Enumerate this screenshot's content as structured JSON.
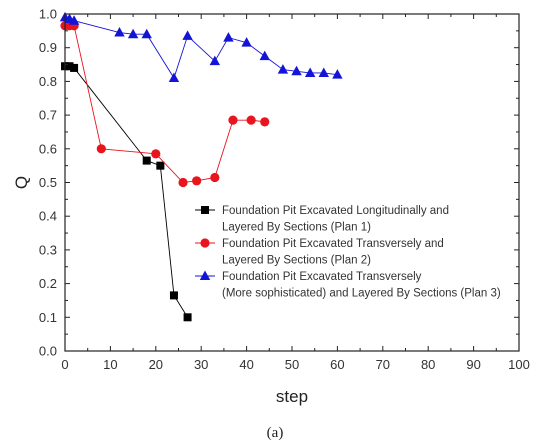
{
  "chart_data": {
    "type": "line",
    "xlabel": "step",
    "ylabel": "Q",
    "xlim": [
      0,
      100
    ],
    "ylim": [
      0,
      1.0
    ],
    "x_ticks": [
      "0",
      "10",
      "20",
      "30",
      "40",
      "50",
      "60",
      "70",
      "80",
      "90",
      "100"
    ],
    "y_ticks": [
      "0.0",
      "0.1",
      "0.2",
      "0.3",
      "0.4",
      "0.5",
      "0.6",
      "0.7",
      "0.8",
      "0.9",
      "1.0"
    ],
    "caption": "(a)",
    "grid": false,
    "legend_position": "center-right",
    "series": [
      {
        "name_lines": [
          "Foundation Pit Excavated Longitudinally and",
          "Layered By Sections (Plan 1)"
        ],
        "marker": "square",
        "color": "#000000",
        "points": [
          [
            0,
            0.845
          ],
          [
            1,
            0.845
          ],
          [
            2,
            0.84
          ],
          [
            18,
            0.565
          ],
          [
            21,
            0.55
          ],
          [
            24,
            0.165
          ],
          [
            27,
            0.1
          ]
        ]
      },
      {
        "name_lines": [
          "Foundation Pit Excavated Transversely and",
          "Layered By Sections (Plan 2)"
        ],
        "marker": "circle",
        "color": "#e8141e",
        "points": [
          [
            0,
            0.965
          ],
          [
            1,
            0.965
          ],
          [
            2,
            0.965
          ],
          [
            8,
            0.6
          ],
          [
            20,
            0.585
          ],
          [
            26,
            0.5
          ],
          [
            29,
            0.505
          ],
          [
            33,
            0.515
          ],
          [
            37,
            0.685
          ],
          [
            41,
            0.685
          ],
          [
            44,
            0.68
          ]
        ]
      },
      {
        "name_lines": [
          "Foundation Pit Excavated Transversely",
          "(More sophisticated) and Layered By Sections  (Plan 3)"
        ],
        "marker": "triangle",
        "color": "#1414d8",
        "points": [
          [
            0,
            0.99
          ],
          [
            1,
            0.985
          ],
          [
            2,
            0.98
          ],
          [
            12,
            0.945
          ],
          [
            15,
            0.94
          ],
          [
            18,
            0.94
          ],
          [
            24,
            0.81
          ],
          [
            27,
            0.935
          ],
          [
            33,
            0.86
          ],
          [
            36,
            0.93
          ],
          [
            40,
            0.915
          ],
          [
            44,
            0.875
          ],
          [
            48,
            0.835
          ],
          [
            51,
            0.83
          ],
          [
            54,
            0.825
          ],
          [
            57,
            0.825
          ],
          [
            60,
            0.82
          ]
        ]
      }
    ]
  }
}
